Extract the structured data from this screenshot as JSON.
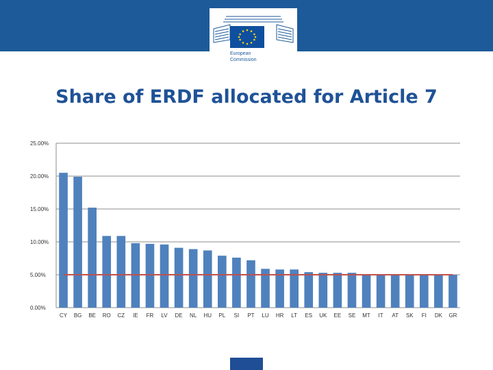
{
  "header": {
    "logo_text_line1": "European",
    "logo_text_line2": "Commission",
    "colors": {
      "bar": "#1d5a9a",
      "flag": "#0f4f9f",
      "stars": "#f5d416"
    }
  },
  "page_title": "Share of ERDF allocated for Article 7",
  "chart_data": {
    "type": "bar",
    "title": "Share of ERDF allocated for Article 7",
    "xlabel": "",
    "ylabel": "",
    "ylim": [
      0,
      25
    ],
    "yticks": [
      0,
      5,
      10,
      15,
      20,
      25
    ],
    "ytick_labels": [
      "0.00%",
      "5.00%",
      "10.00%",
      "15.00%",
      "20.00%",
      "25.00%"
    ],
    "grid": true,
    "legend": "none",
    "categories": [
      "CY",
      "BG",
      "BE",
      "RO",
      "CZ",
      "IE",
      "FR",
      "LV",
      "DE",
      "NL",
      "HU",
      "PL",
      "SI",
      "PT",
      "LU",
      "HR",
      "LT",
      "ES",
      "UK",
      "EE",
      "SE",
      "MT",
      "IT",
      "AT",
      "SK",
      "FI",
      "DK",
      "GR"
    ],
    "series": [
      {
        "type": "bar",
        "color": "#4f81bd",
        "values": [
          20.5,
          19.9,
          15.2,
          10.9,
          10.9,
          9.8,
          9.7,
          9.6,
          9.1,
          8.9,
          8.7,
          7.9,
          7.6,
          7.2,
          5.9,
          5.8,
          5.8,
          5.4,
          5.3,
          5.3,
          5.3,
          5.0,
          5.0,
          5.0,
          5.0,
          5.0,
          5.0,
          5.0
        ]
      },
      {
        "type": "line",
        "color": "#c0504d",
        "value": 5.0
      }
    ]
  }
}
